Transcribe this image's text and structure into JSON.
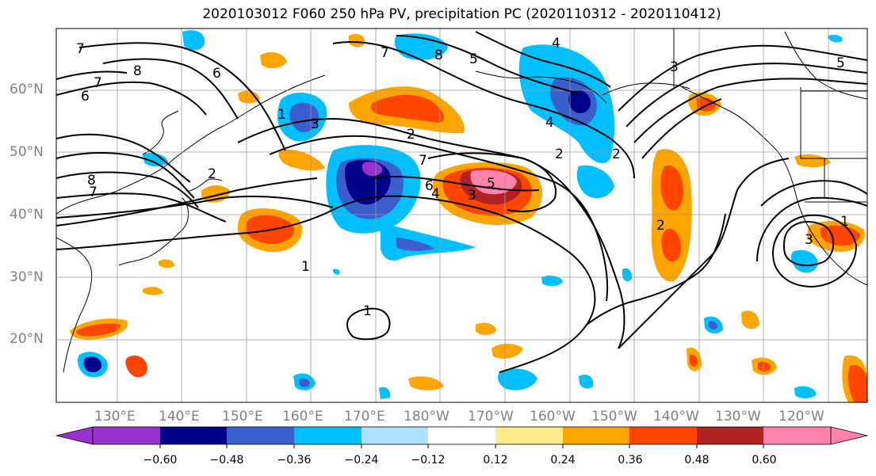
{
  "title": "2020103012 F060 250 hPa PV, precipitation PC (2020110312 - 2020110412)",
  "lat_labels": [
    "60°N",
    "50°N",
    "40°N",
    "30°N",
    "20°N"
  ],
  "lon_labels": [
    "130°E",
    "140°E",
    "150°E",
    "160°E",
    "170°E",
    "180°W",
    "170°W",
    "160°W",
    "150°W",
    "140°W",
    "130°W",
    "120°W"
  ],
  "colorbar": {
    "ticks": [
      "−0.60",
      "−0.48",
      "−0.36",
      "−0.24",
      "−0.12",
      "0.12",
      "0.24",
      "0.36",
      "0.48",
      "0.60"
    ],
    "colors": [
      "#9932CC",
      "#00008B",
      "#3A5FCD",
      "#00BFFF",
      "#B0E2FF",
      "#FFFFFF",
      "#FFEC8B",
      "#FFA500",
      "#FF4500",
      "#B22222",
      "#FF82AB"
    ]
  },
  "contour_labels": [
    "7",
    "8",
    "7",
    "6",
    "6",
    "8",
    "7",
    "8",
    "7",
    "2",
    "1",
    "3",
    "2",
    "7",
    "6",
    "4",
    "5",
    "3",
    "2",
    "2",
    "1",
    "1",
    "5",
    "3",
    "2",
    "1",
    "3",
    "4",
    "5",
    "4"
  ]
}
